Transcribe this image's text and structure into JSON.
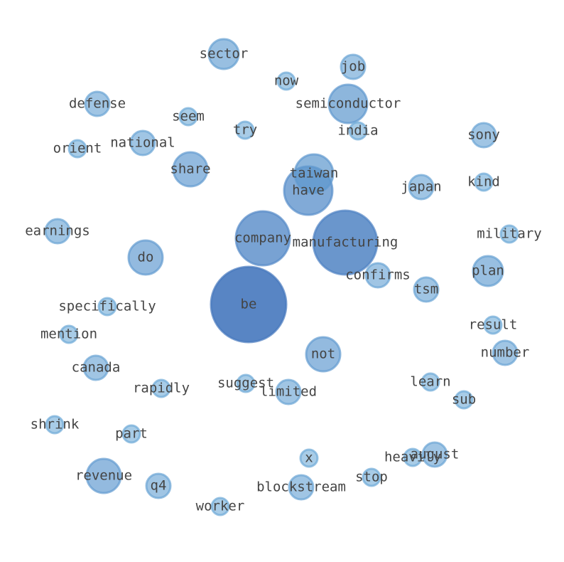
{
  "nodes": [
    {
      "label": "manufacturing"
    },
    {
      "label": "be"
    },
    {
      "label": "company"
    },
    {
      "label": "have"
    },
    {
      "label": "taiwan"
    },
    {
      "label": "semiconductor"
    },
    {
      "label": "not"
    },
    {
      "label": "do"
    },
    {
      "label": "share"
    },
    {
      "label": "sector"
    },
    {
      "label": "job"
    },
    {
      "label": "now"
    },
    {
      "label": "defense"
    },
    {
      "label": "seem"
    },
    {
      "label": "national"
    },
    {
      "label": "try"
    },
    {
      "label": "india"
    },
    {
      "label": "sony"
    },
    {
      "label": "orient"
    },
    {
      "label": "japan"
    },
    {
      "label": "kind"
    },
    {
      "label": "earnings"
    },
    {
      "label": "military"
    },
    {
      "label": "confirms"
    },
    {
      "label": "plan"
    },
    {
      "label": "tsm"
    },
    {
      "label": "specifically"
    },
    {
      "label": "result"
    },
    {
      "label": "mention"
    },
    {
      "label": "number"
    },
    {
      "label": "canada"
    },
    {
      "label": "suggest"
    },
    {
      "label": "limited"
    },
    {
      "label": "rapidly"
    },
    {
      "label": "learn"
    },
    {
      "label": "sub"
    },
    {
      "label": "shrink"
    },
    {
      "label": "part"
    },
    {
      "label": "august"
    },
    {
      "label": "heavily"
    },
    {
      "label": "x"
    },
    {
      "label": "stop"
    },
    {
      "label": "revenue"
    },
    {
      "label": "q4"
    },
    {
      "label": "blockstream"
    },
    {
      "label": "worker"
    }
  ]
}
